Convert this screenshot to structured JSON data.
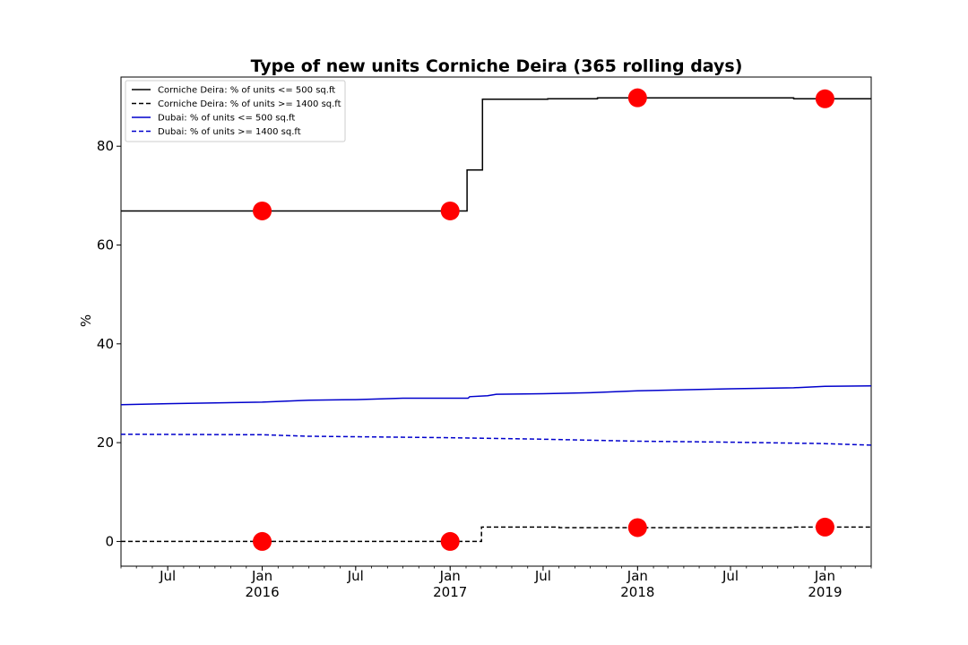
{
  "chart_data": {
    "type": "line",
    "title": "Type of new units Corniche Deira (365 rolling days)",
    "xlabel": "",
    "ylabel": "%",
    "xlim": [
      "2015-04-01",
      "2019-04-01"
    ],
    "ylim": [
      -5,
      94
    ],
    "y_ticks": [
      0,
      20,
      40,
      60,
      80
    ],
    "x_ticks": [
      {
        "date": "2015-07-01",
        "label": "Jul",
        "sublabel": ""
      },
      {
        "date": "2016-01-01",
        "label": "Jan",
        "sublabel": "2016"
      },
      {
        "date": "2016-07-01",
        "label": "Jul",
        "sublabel": ""
      },
      {
        "date": "2017-01-01",
        "label": "Jan",
        "sublabel": "2017"
      },
      {
        "date": "2017-07-01",
        "label": "Jul",
        "sublabel": ""
      },
      {
        "date": "2018-01-01",
        "label": "Jan",
        "sublabel": "2018"
      },
      {
        "date": "2018-07-01",
        "label": "Jul",
        "sublabel": ""
      },
      {
        "date": "2019-01-01",
        "label": "Jan",
        "sublabel": "2019"
      }
    ],
    "grid": false,
    "legend_position": "top-left",
    "series": [
      {
        "name": "Corniche Deira: % of units <= 500 sq.ft",
        "color": "#000000",
        "style": "solid",
        "step": true,
        "points": [
          [
            "2015-04-01",
            66.9
          ],
          [
            "2017-02-03",
            66.9
          ],
          [
            "2017-02-03",
            75.2
          ],
          [
            "2017-03-05",
            75.2
          ],
          [
            "2017-03-05",
            89.5
          ],
          [
            "2017-07-10",
            89.5
          ],
          [
            "2017-07-10",
            89.6
          ],
          [
            "2017-10-15",
            89.6
          ],
          [
            "2017-10-15",
            89.8
          ],
          [
            "2018-11-01",
            89.8
          ],
          [
            "2018-11-01",
            89.6
          ],
          [
            "2019-04-01",
            89.6
          ]
        ]
      },
      {
        "name": "Corniche Deira: % of units >= 1400 sq.ft",
        "color": "#000000",
        "style": "dashed",
        "step": true,
        "points": [
          [
            "2015-04-01",
            0.0
          ],
          [
            "2017-03-03",
            0.0
          ],
          [
            "2017-03-03",
            2.9
          ],
          [
            "2017-08-01",
            2.9
          ],
          [
            "2017-08-01",
            2.8
          ],
          [
            "2018-11-01",
            2.8
          ],
          [
            "2018-11-01",
            2.9
          ],
          [
            "2019-04-01",
            2.9
          ]
        ]
      },
      {
        "name": "Dubai: % of units <= 500 sq.ft",
        "color": "#0000cc",
        "style": "solid",
        "step": false,
        "points": [
          [
            "2015-04-01",
            27.7
          ],
          [
            "2015-07-01",
            27.9
          ],
          [
            "2016-01-01",
            28.2
          ],
          [
            "2016-04-01",
            28.6
          ],
          [
            "2016-07-01",
            28.7
          ],
          [
            "2016-10-01",
            29.0
          ],
          [
            "2017-02-05",
            29.0
          ],
          [
            "2017-02-08",
            29.3
          ],
          [
            "2017-03-15",
            29.5
          ],
          [
            "2017-04-01",
            29.8
          ],
          [
            "2017-07-01",
            29.9
          ],
          [
            "2017-10-01",
            30.1
          ],
          [
            "2018-01-01",
            30.5
          ],
          [
            "2018-07-01",
            30.9
          ],
          [
            "2018-11-01",
            31.1
          ],
          [
            "2019-01-01",
            31.4
          ],
          [
            "2019-04-01",
            31.5
          ]
        ]
      },
      {
        "name": "Dubai: % of units >= 1400 sq.ft",
        "color": "#0000cc",
        "style": "dashed",
        "step": false,
        "points": [
          [
            "2015-04-01",
            21.7
          ],
          [
            "2016-01-01",
            21.6
          ],
          [
            "2016-04-01",
            21.3
          ],
          [
            "2016-07-01",
            21.2
          ],
          [
            "2017-01-01",
            21.0
          ],
          [
            "2017-07-01",
            20.7
          ],
          [
            "2018-01-01",
            20.3
          ],
          [
            "2018-07-01",
            20.1
          ],
          [
            "2019-01-01",
            19.8
          ],
          [
            "2019-04-01",
            19.5
          ]
        ]
      }
    ],
    "markers": {
      "color": "#ff0000",
      "points": [
        [
          "2016-01-01",
          66.9
        ],
        [
          "2017-01-01",
          66.9
        ],
        [
          "2018-01-01",
          89.8
        ],
        [
          "2019-01-01",
          89.6
        ],
        [
          "2016-01-01",
          0.0
        ],
        [
          "2017-01-01",
          0.0
        ],
        [
          "2018-01-01",
          2.8
        ],
        [
          "2019-01-01",
          2.9
        ]
      ]
    }
  }
}
